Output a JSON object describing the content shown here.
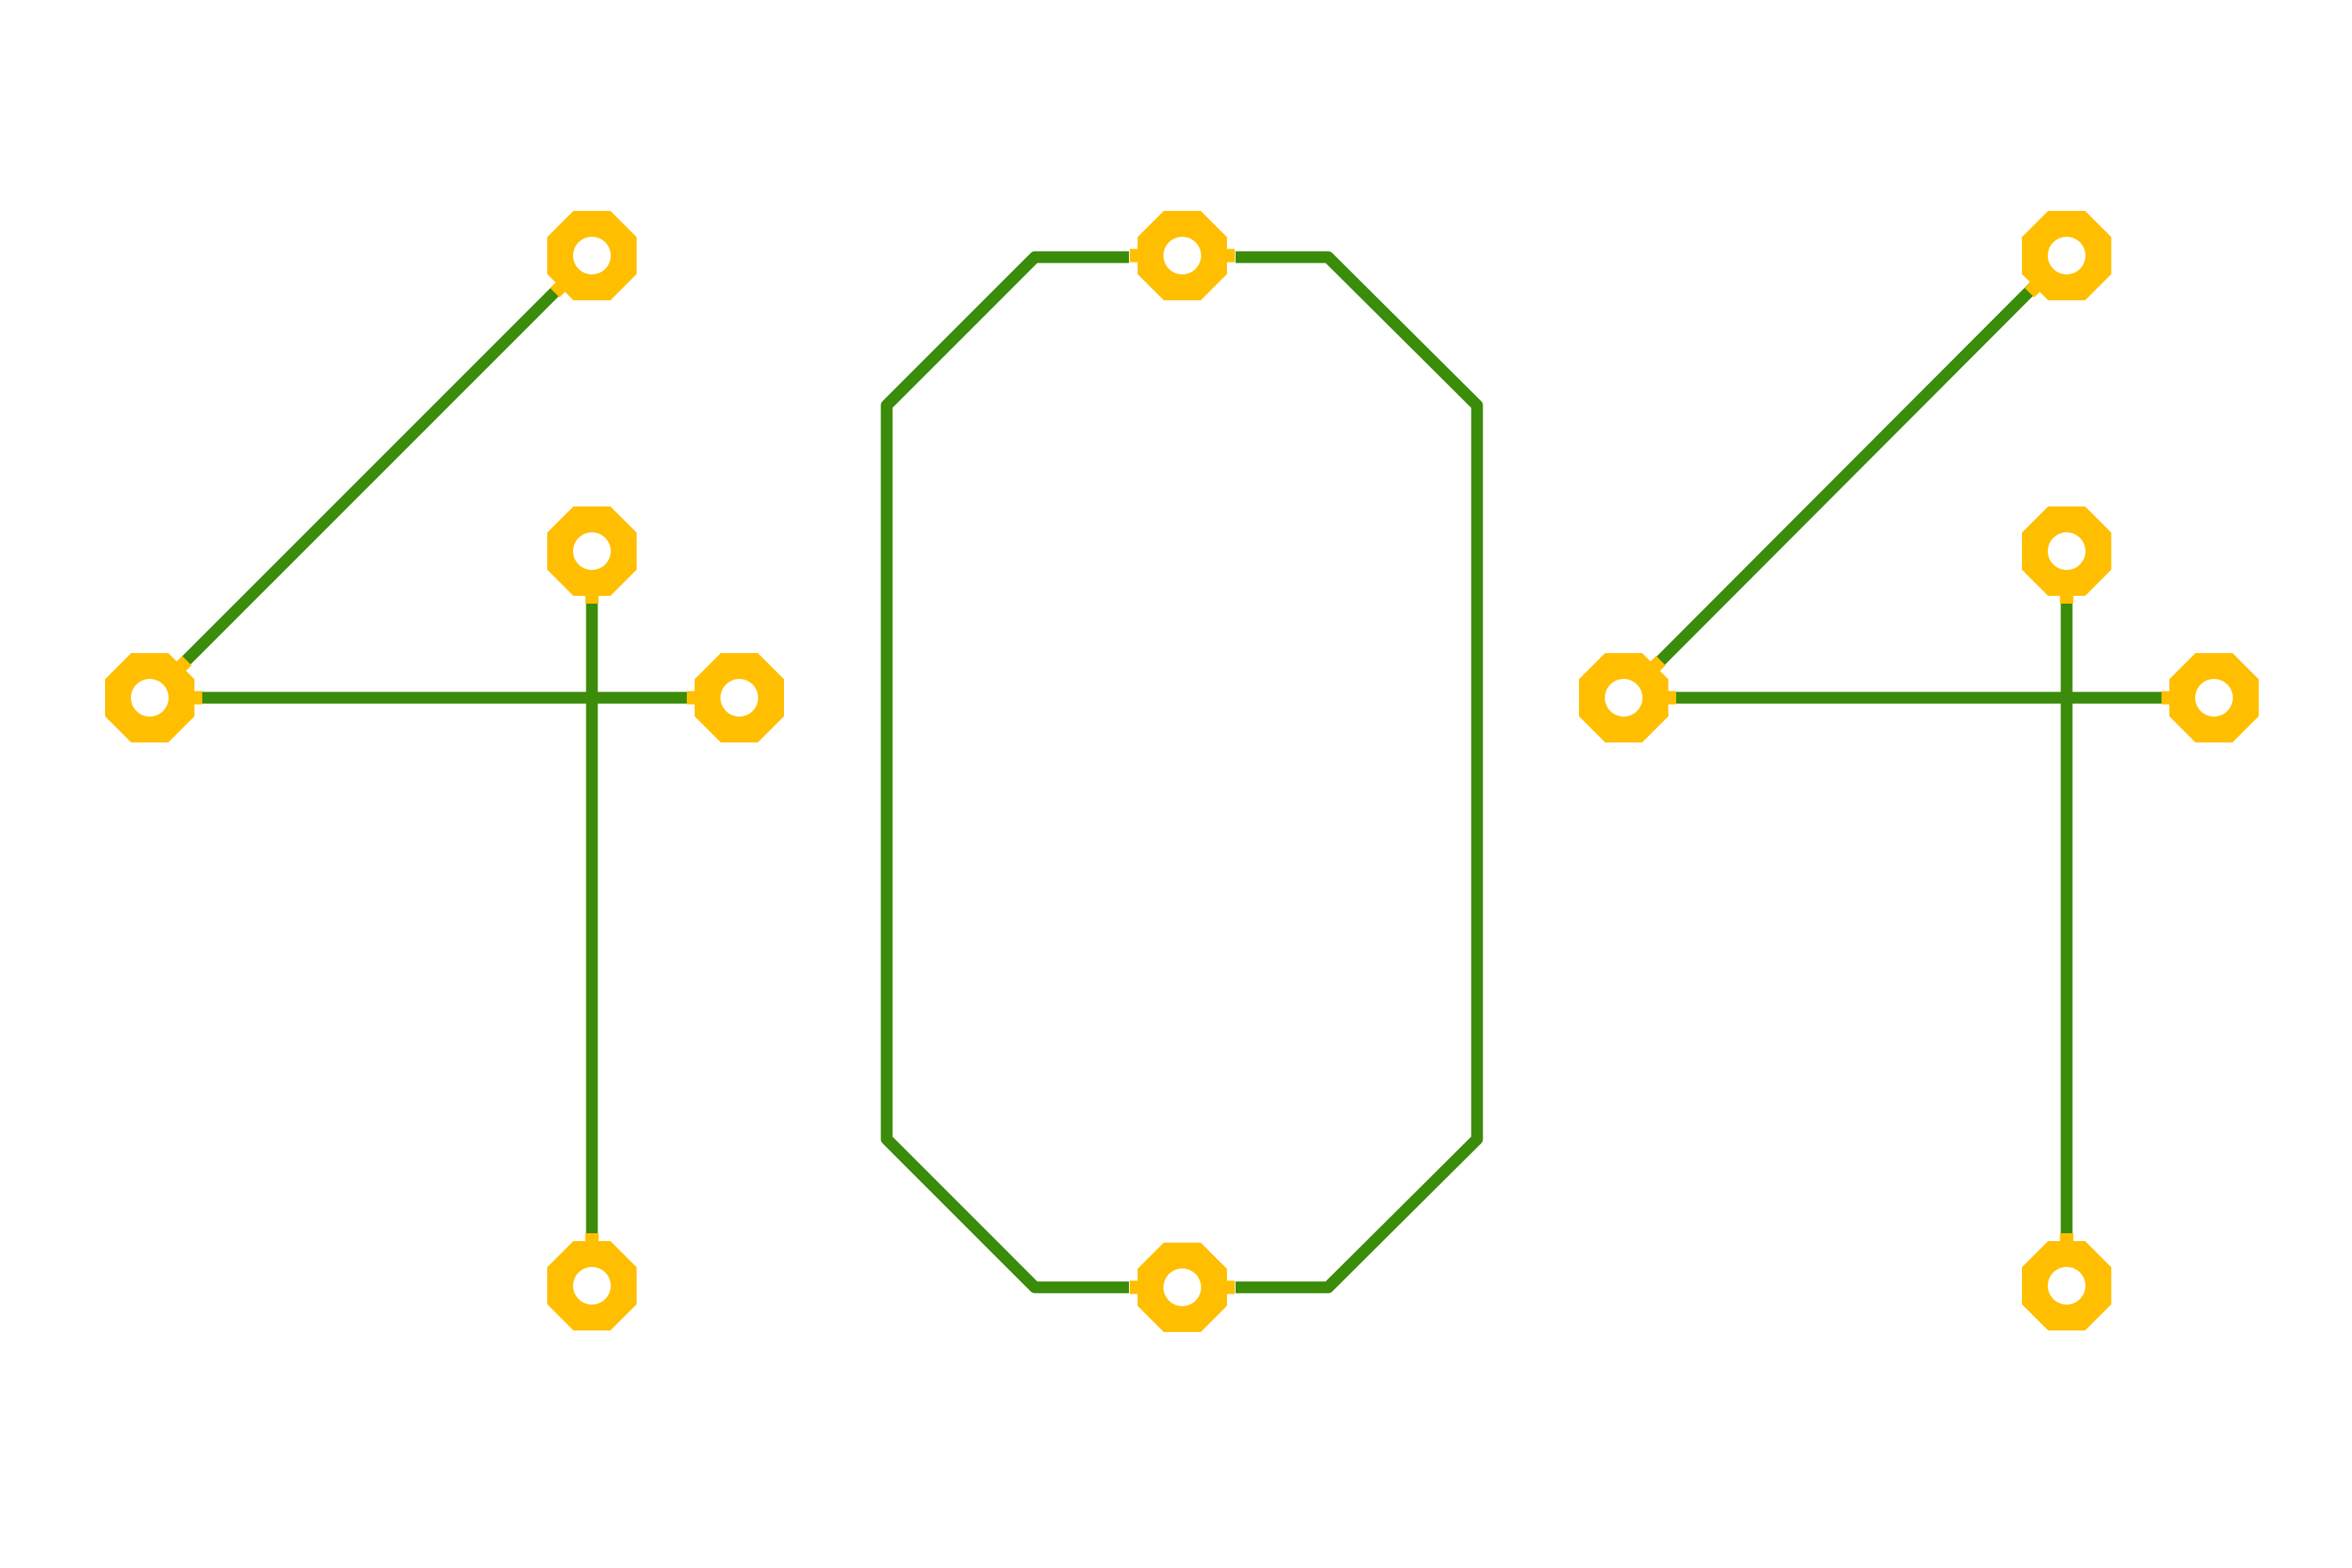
{
  "illustration": {
    "subject": "404",
    "digits": [
      "4",
      "0",
      "4"
    ]
  },
  "colors": {
    "background": "#ffffff",
    "trace": "#3a8c0a",
    "pad": "#ffbf00",
    "pad_hole": "#ffffff"
  }
}
